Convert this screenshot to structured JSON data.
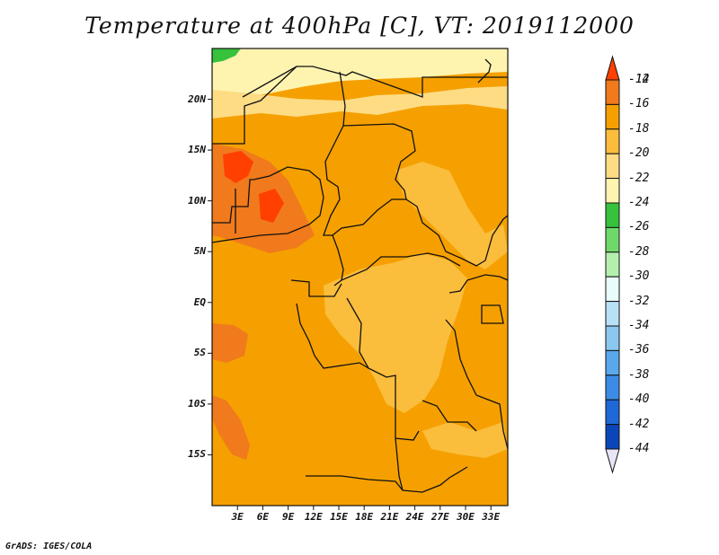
{
  "title": "Temperature at 400hPa [C], VT: 2019112000",
  "credit": "GrADS: IGES/COLA",
  "map": {
    "lon_range": [
      0,
      35
    ],
    "lat_range": [
      -20,
      25
    ],
    "y_ticks": [
      {
        "label": "20N",
        "lat": 20
      },
      {
        "label": "15N",
        "lat": 15
      },
      {
        "label": "10N",
        "lat": 10
      },
      {
        "label": "5N",
        "lat": 5
      },
      {
        "label": "EQ",
        "lat": 0
      },
      {
        "label": "5S",
        "lat": -5
      },
      {
        "label": "10S",
        "lat": -10
      },
      {
        "label": "15S",
        "lat": -15
      }
    ],
    "x_ticks": [
      {
        "label": "3E",
        "lon": 3
      },
      {
        "label": "6E",
        "lon": 6
      },
      {
        "label": "9E",
        "lon": 9
      },
      {
        "label": "12E",
        "lon": 12
      },
      {
        "label": "15E",
        "lon": 15
      },
      {
        "label": "18E",
        "lon": 18
      },
      {
        "label": "21E",
        "lon": 21
      },
      {
        "label": "24E",
        "lon": 24
      },
      {
        "label": "27E",
        "lon": 27
      },
      {
        "label": "30E",
        "lon": 30
      },
      {
        "label": "33E",
        "lon": 33
      }
    ],
    "base_fill": "#f5a000",
    "colors": {
      "c12": "#ff4000",
      "c14": "#f07a1c",
      "c16": "#f5a000",
      "c18": "#fbbd3c",
      "c20": "#fddc84",
      "c22": "#fef4b0",
      "c24": "#36c23c",
      "border": "#111111"
    }
  },
  "colorbar": {
    "labels": [
      "-12",
      "-14",
      "-16",
      "-18",
      "-20",
      "-22",
      "-24",
      "-26",
      "-28",
      "-30",
      "-32",
      "-34",
      "-36",
      "-38",
      "-40",
      "-42",
      "-44"
    ],
    "colors": [
      "#ff4000",
      "#f07a1c",
      "#f5a000",
      "#fbbd3c",
      "#fddc84",
      "#fef4b0",
      "#36c23c",
      "#6ed96a",
      "#b3f0ad",
      "#e8fbfd",
      "#b9e1f6",
      "#8ac8f0",
      "#5aa8ec",
      "#3c8ce6",
      "#1e68d8",
      "#0a46b8",
      "#081670"
    ],
    "top_triangle": "#ff4000",
    "bottom_triangle": "#e8e6f6"
  }
}
